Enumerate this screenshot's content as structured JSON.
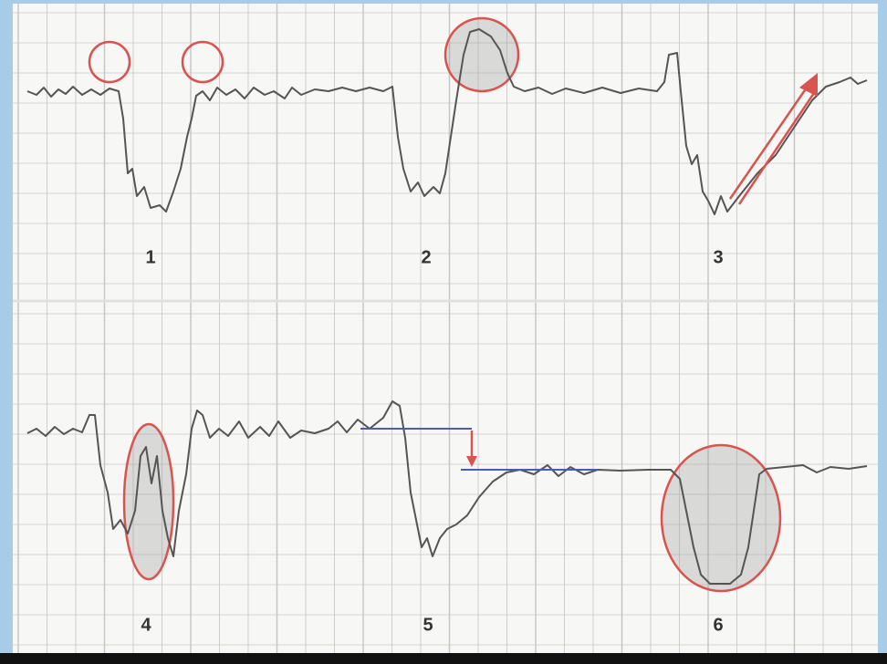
{
  "panels": [
    {
      "label": "1"
    },
    {
      "label": "2"
    },
    {
      "label": "3"
    },
    {
      "label": "4"
    },
    {
      "label": "5"
    },
    {
      "label": "6"
    }
  ]
}
